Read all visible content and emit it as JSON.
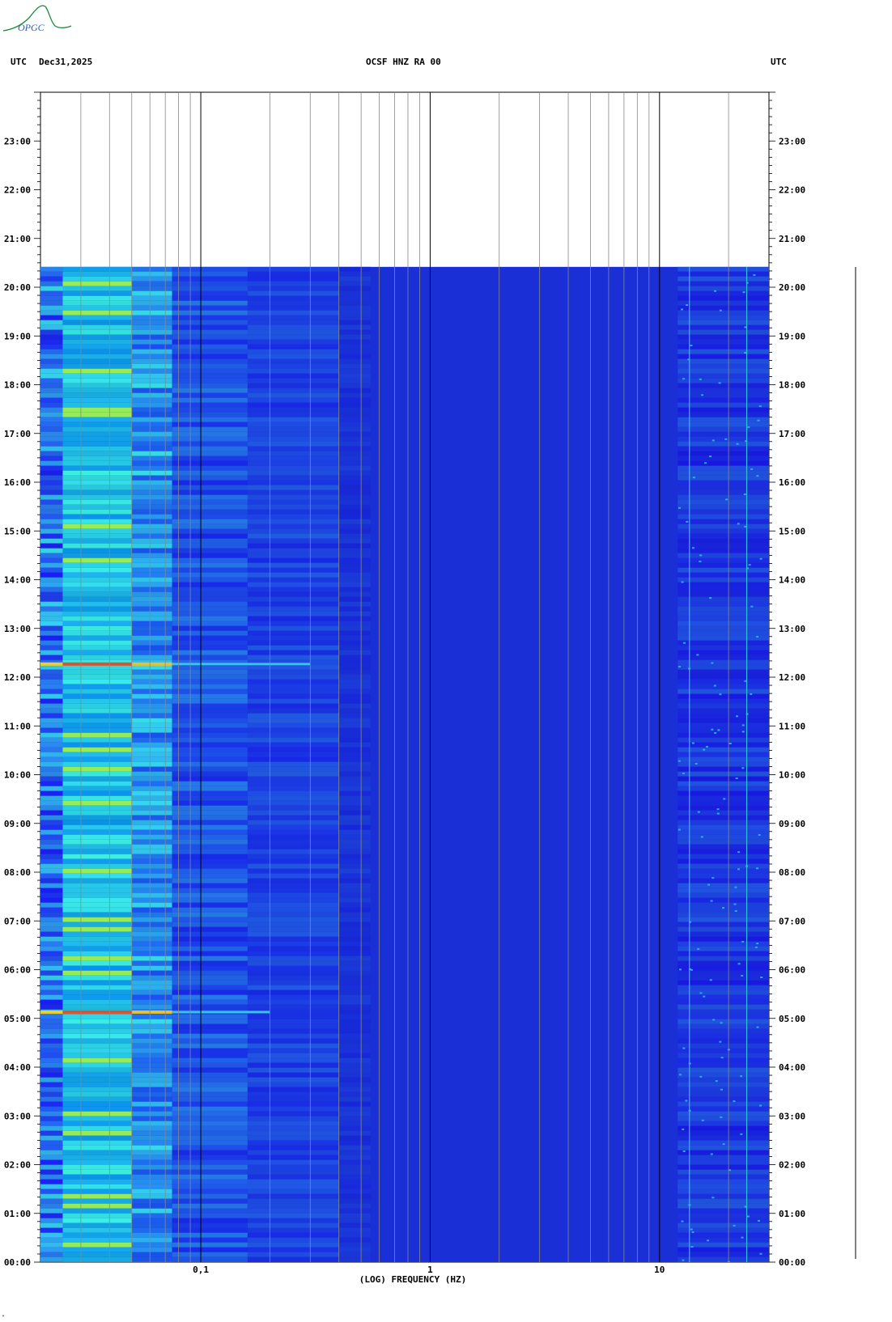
{
  "header": {
    "left_tz": "UTC",
    "date": "Dec31,2025",
    "station": "OCSF HNZ RA 00",
    "right_tz": "UTC"
  },
  "logo": {
    "text": "OPGC",
    "color": "#1b8a3c"
  },
  "footer_mark": "\"",
  "chart_data": {
    "type": "heatmap",
    "title": "OCSF HNZ RA 00",
    "xlabel": "(LOG) FREQUENCY (HZ)",
    "ylabel": "",
    "x_scale": "log",
    "xlim": [
      0.02,
      30
    ],
    "x_tick_labels": [
      {
        "value": 0.1,
        "label": "0,1"
      },
      {
        "value": 1,
        "label": "1"
      },
      {
        "value": 10,
        "label": "10"
      }
    ],
    "x_gridlines_minor": [
      0.03,
      0.04,
      0.05,
      0.06,
      0.07,
      0.08,
      0.09,
      0.2,
      0.3,
      0.4,
      0.5,
      0.6,
      0.7,
      0.8,
      0.9,
      2,
      3,
      4,
      5,
      6,
      7,
      8,
      9,
      20
    ],
    "x_gridlines_major": [
      0.1,
      1,
      10
    ],
    "y_unit": "hours UTC",
    "ylim": [
      0,
      24
    ],
    "y_tick_labels": [
      "00:00",
      "01:00",
      "02:00",
      "03:00",
      "04:00",
      "05:00",
      "06:00",
      "07:00",
      "08:00",
      "09:00",
      "10:00",
      "11:00",
      "12:00",
      "13:00",
      "14:00",
      "15:00",
      "16:00",
      "17:00",
      "18:00",
      "19:00",
      "20:00",
      "21:00",
      "22:00",
      "23:00"
    ],
    "data_end_hour": 20.42,
    "colors": {
      "background_level": "#1a2fd6",
      "low": "#1e3ae0",
      "mid": "#19c7e6",
      "high": "#c8f040",
      "peak": "#e0502a"
    },
    "events": [
      {
        "time_hour": 12.27,
        "freq_max_hz": 0.3,
        "description": "broadband energy"
      },
      {
        "time_hour": 5.13,
        "freq_max_hz": 0.2,
        "description": "broadband energy"
      }
    ]
  }
}
